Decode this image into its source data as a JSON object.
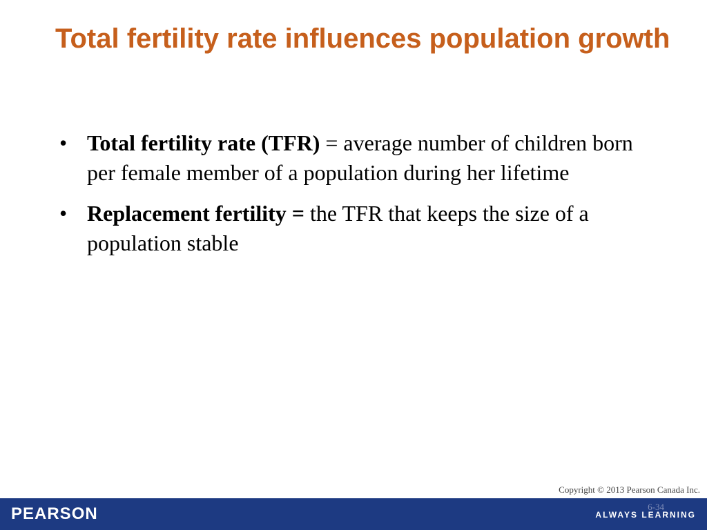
{
  "slide": {
    "title": "Total fertility rate influences population growth",
    "bullets": [
      {
        "term": "Total fertility rate (TFR)",
        "separator": " = ",
        "definition": "average number of children born per female member of a population during her lifetime"
      },
      {
        "term": "Replacement fertility =",
        "separator": " ",
        "definition": "the TFR that keeps the size of a population stable"
      }
    ],
    "bullet_symbol": "•"
  },
  "footer": {
    "copyright": "Copyright © 2013 Pearson Canada Inc.",
    "page_number": "6-34",
    "brand": "PEARSON",
    "tagline": "ALWAYS LEARNING",
    "bar_color": "#1d3a82"
  },
  "colors": {
    "title": "#c65f1c",
    "text": "#000000"
  }
}
